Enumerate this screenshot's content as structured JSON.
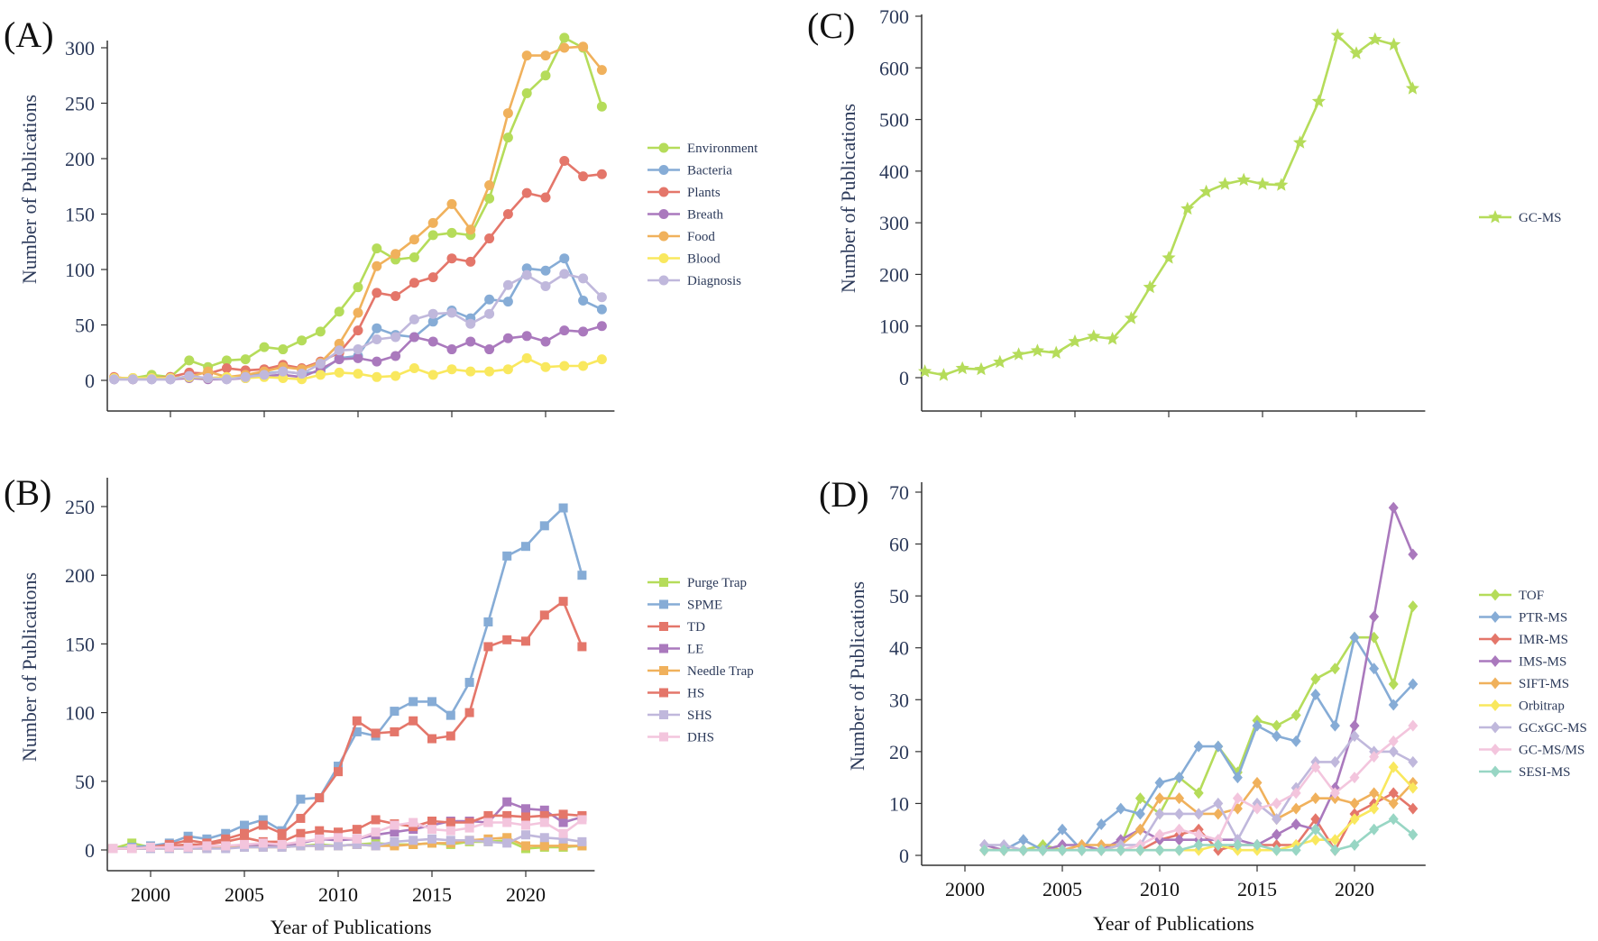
{
  "chart_data": [
    {
      "panel_label": "(A)",
      "type": "line",
      "marker": "circle",
      "xlabel": "",
      "ylabel": "Number of Publications",
      "ylim": [
        0,
        330
      ],
      "yticks": [
        0,
        50,
        100,
        150,
        200,
        250,
        300
      ],
      "xticks": [
        2000,
        2005,
        2010,
        2015,
        2020
      ],
      "show_xtick_labels": false,
      "x": [
        1997,
        1998,
        1999,
        2000,
        2001,
        2002,
        2003,
        2004,
        2005,
        2006,
        2007,
        2008,
        2009,
        2010,
        2011,
        2012,
        2013,
        2014,
        2015,
        2016,
        2017,
        2018,
        2019,
        2020,
        2021,
        2022,
        2023
      ],
      "series": [
        {
          "name": "Environment",
          "color": "#b5dc5a",
          "values": [
            2,
            2,
            5,
            3,
            18,
            12,
            18,
            19,
            30,
            28,
            36,
            44,
            62,
            84,
            119,
            109,
            111,
            131,
            133,
            131,
            164,
            219,
            259,
            275,
            309,
            300,
            247
          ]
        },
        {
          "name": "Bacteria",
          "color": "#86acd6",
          "values": [
            1,
            1,
            1,
            1,
            3,
            2,
            3,
            4,
            6,
            8,
            6,
            8,
            20,
            22,
            47,
            41,
            39,
            53,
            63,
            56,
            73,
            71,
            101,
            99,
            110,
            72,
            64
          ]
        },
        {
          "name": "Plants",
          "color": "#e4766a",
          "values": [
            3,
            1,
            2,
            3,
            7,
            6,
            11,
            9,
            10,
            14,
            11,
            17,
            25,
            45,
            79,
            76,
            88,
            93,
            110,
            107,
            128,
            150,
            169,
            165,
            198,
            184,
            186
          ]
        },
        {
          "name": "Breath",
          "color": "#aa79bd",
          "values": [
            1,
            1,
            1,
            1,
            2,
            1,
            1,
            2,
            4,
            5,
            3,
            10,
            19,
            20,
            17,
            22,
            39,
            35,
            28,
            35,
            28,
            38,
            40,
            35,
            45,
            44,
            49
          ]
        },
        {
          "name": "Food",
          "color": "#f0b15c",
          "values": [
            2,
            2,
            2,
            2,
            3,
            8,
            3,
            5,
            8,
            12,
            10,
            16,
            33,
            61,
            103,
            114,
            127,
            142,
            159,
            136,
            176,
            241,
            293,
            293,
            300,
            301,
            280
          ]
        },
        {
          "name": "Blood",
          "color": "#f9e85e",
          "values": [
            2,
            2,
            2,
            2,
            3,
            2,
            3,
            2,
            3,
            2,
            1,
            5,
            7,
            6,
            3,
            4,
            11,
            5,
            10,
            8,
            8,
            10,
            20,
            12,
            13,
            13,
            19
          ]
        },
        {
          "name": "Diagnosis",
          "color": "#c0b8dc",
          "values": [
            1,
            1,
            1,
            1,
            4,
            2,
            1,
            3,
            5,
            8,
            6,
            15,
            27,
            28,
            37,
            39,
            55,
            60,
            61,
            51,
            60,
            86,
            95,
            85,
            96,
            92,
            75
          ]
        }
      ]
    },
    {
      "panel_label": "(B)",
      "type": "line",
      "marker": "square",
      "xlabel": "Year of Publications",
      "ylabel": "Number of Publications",
      "ylim": [
        0,
        270
      ],
      "yticks": [
        0,
        50,
        100,
        150,
        200,
        250
      ],
      "xticks": [
        2000,
        2005,
        2010,
        2015,
        2020
      ],
      "show_xtick_labels": true,
      "x": [
        1998,
        1999,
        2000,
        2001,
        2002,
        2003,
        2004,
        2005,
        2006,
        2007,
        2008,
        2009,
        2010,
        2011,
        2012,
        2013,
        2014,
        2015,
        2016,
        2017,
        2018,
        2019,
        2020,
        2021,
        2022,
        2023
      ],
      "series": [
        {
          "name": "Purge Trap",
          "color": "#b5dc5a",
          "values": [
            1,
            5,
            2,
            2,
            2,
            2,
            3,
            2,
            3,
            3,
            3,
            4,
            3,
            4,
            5,
            4,
            4,
            5,
            4,
            6,
            6,
            7,
            1,
            2,
            2,
            3
          ]
        },
        {
          "name": "SPME",
          "color": "#86acd6",
          "values": [
            1,
            2,
            3,
            5,
            10,
            8,
            12,
            18,
            22,
            14,
            37,
            38,
            61,
            86,
            83,
            101,
            108,
            108,
            98,
            122,
            166,
            214,
            221,
            236,
            249,
            200
          ]
        },
        {
          "name": "TD",
          "color": "#e4766a",
          "values": [
            1,
            1,
            2,
            4,
            7,
            5,
            8,
            12,
            18,
            12,
            23,
            38,
            57,
            94,
            85,
            86,
            94,
            81,
            83,
            100,
            148,
            153,
            152,
            171,
            181,
            148
          ]
        },
        {
          "name": "LE",
          "color": "#aa79bd",
          "values": [
            1,
            1,
            1,
            2,
            2,
            2,
            3,
            3,
            4,
            3,
            5,
            8,
            7,
            8,
            11,
            13,
            15,
            18,
            21,
            21,
            20,
            35,
            30,
            29,
            20,
            24
          ]
        },
        {
          "name": "Needle Trap",
          "color": "#f0b15c",
          "values": [
            1,
            1,
            1,
            1,
            1,
            1,
            2,
            2,
            2,
            2,
            3,
            3,
            3,
            4,
            3,
            3,
            4,
            5,
            5,
            7,
            8,
            9,
            3,
            3,
            3,
            3
          ]
        },
        {
          "name": "HS",
          "color": "#e4766a",
          "values": [
            1,
            1,
            2,
            3,
            4,
            4,
            6,
            9,
            6,
            6,
            12,
            14,
            13,
            15,
            22,
            19,
            17,
            21,
            20,
            20,
            25,
            25,
            24,
            25,
            26,
            25
          ]
        },
        {
          "name": "SHS",
          "color": "#c0b8dc",
          "values": [
            1,
            1,
            1,
            1,
            1,
            1,
            1,
            2,
            2,
            2,
            3,
            3,
            3,
            4,
            3,
            6,
            7,
            8,
            7,
            7,
            6,
            5,
            11,
            9,
            8,
            6
          ]
        },
        {
          "name": "DHS",
          "color": "#f3c5dd",
          "values": [
            1,
            1,
            2,
            2,
            2,
            3,
            3,
            4,
            5,
            4,
            6,
            8,
            9,
            8,
            13,
            18,
            20,
            15,
            14,
            16,
            20,
            20,
            18,
            20,
            12,
            22
          ]
        }
      ]
    },
    {
      "panel_label": "(C)",
      "type": "line",
      "marker": "star",
      "xlabel": "",
      "ylabel": "Number of Publications",
      "ylim": [
        0,
        700
      ],
      "yticks": [
        0,
        100,
        200,
        300,
        400,
        500,
        600,
        700
      ],
      "xticks": [
        2000,
        2005,
        2010,
        2015,
        2020
      ],
      "show_xtick_labels": false,
      "x": [
        1997,
        1998,
        1999,
        2000,
        2001,
        2002,
        2003,
        2004,
        2005,
        2006,
        2007,
        2008,
        2009,
        2010,
        2011,
        2012,
        2013,
        2014,
        2015,
        2016,
        2017,
        2018,
        2019,
        2020,
        2021,
        2022,
        2023
      ],
      "series": [
        {
          "name": "GC-MS",
          "color": "#b5dc5a",
          "values": [
            12,
            5,
            18,
            16,
            30,
            45,
            52,
            48,
            70,
            80,
            75,
            115,
            175,
            232,
            327,
            360,
            375,
            383,
            375,
            373,
            455,
            535,
            663,
            628,
            655,
            645,
            560
          ]
        }
      ]
    },
    {
      "panel_label": "(D)",
      "type": "line",
      "marker": "diamond",
      "xlabel": "Year of Publications",
      "ylabel": "Number of Publications",
      "ylim": [
        0,
        70
      ],
      "yticks": [
        0,
        10,
        20,
        30,
        40,
        50,
        60,
        70
      ],
      "xticks": [
        2000,
        2005,
        2010,
        2015,
        2020
      ],
      "show_xtick_labels": true,
      "x": [
        2001,
        2002,
        2003,
        2004,
        2005,
        2006,
        2007,
        2008,
        2009,
        2010,
        2011,
        2012,
        2013,
        2014,
        2015,
        2016,
        2017,
        2018,
        2019,
        2020,
        2021,
        2022,
        2023
      ],
      "series": [
        {
          "name": "TOF",
          "color": "#b5dc5a",
          "values": [
            1,
            1,
            1,
            2,
            1,
            1,
            1,
            2,
            11,
            8,
            15,
            12,
            21,
            16,
            26,
            25,
            27,
            34,
            36,
            42,
            42,
            33,
            48
          ]
        },
        {
          "name": "PTR-MS",
          "color": "#86acd6",
          "values": [
            1,
            1,
            3,
            1,
            5,
            1,
            6,
            9,
            8,
            14,
            15,
            21,
            21,
            15,
            25,
            23,
            22,
            31,
            25,
            42,
            36,
            29,
            33
          ]
        },
        {
          "name": "IMR-MS",
          "color": "#e4766a",
          "values": [
            1,
            1,
            1,
            1,
            1,
            1,
            1,
            1,
            1,
            3,
            4,
            5,
            1,
            2,
            2,
            2,
            2,
            7,
            1,
            8,
            10,
            12,
            9
          ]
        },
        {
          "name": "IMS-MS",
          "color": "#aa79bd",
          "values": [
            2,
            1,
            1,
            1,
            2,
            2,
            1,
            3,
            5,
            3,
            3,
            3,
            3,
            3,
            2,
            4,
            6,
            5,
            13,
            25,
            46,
            67,
            58
          ]
        },
        {
          "name": "SIFT-MS",
          "color": "#f0b15c",
          "values": [
            1,
            1,
            1,
            1,
            1,
            2,
            2,
            2,
            5,
            11,
            11,
            8,
            8,
            9,
            14,
            7,
            9,
            11,
            11,
            10,
            12,
            10,
            14
          ]
        },
        {
          "name": "Orbitrap",
          "color": "#f9e85e",
          "values": [
            1,
            1,
            1,
            1,
            1,
            1,
            1,
            1,
            1,
            1,
            1,
            1,
            2,
            1,
            1,
            1,
            2,
            3,
            3,
            7,
            9,
            17,
            13
          ]
        },
        {
          "name": "GCxGC-MS",
          "color": "#c0b8dc",
          "values": [
            2,
            2,
            1,
            1,
            1,
            1,
            1,
            2,
            2,
            8,
            8,
            8,
            10,
            3,
            10,
            7,
            13,
            18,
            18,
            23,
            20,
            20,
            18
          ]
        },
        {
          "name": "GC-MS/MS",
          "color": "#f3c5dd",
          "values": [
            1,
            1,
            1,
            1,
            1,
            1,
            1,
            1,
            2,
            4,
            5,
            4,
            3,
            11,
            9,
            10,
            12,
            17,
            12,
            15,
            19,
            22,
            25
          ]
        },
        {
          "name": "SESI-MS",
          "color": "#98d6c4",
          "values": [
            1,
            1,
            1,
            1,
            1,
            1,
            1,
            1,
            1,
            1,
            1,
            2,
            2,
            2,
            2,
            1,
            1,
            5,
            1,
            2,
            5,
            7,
            4
          ]
        }
      ]
    }
  ]
}
